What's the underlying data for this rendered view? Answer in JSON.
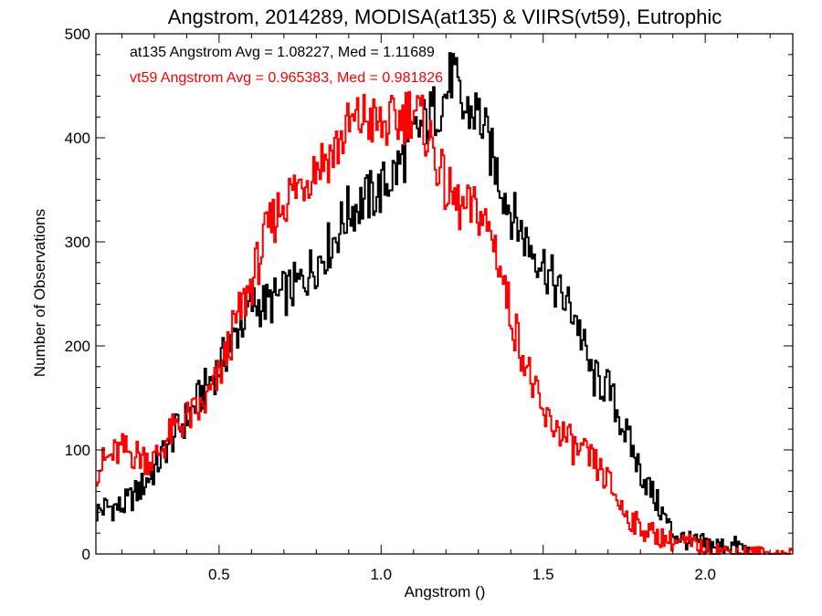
{
  "chart_data": {
    "type": "line",
    "title": "Angstrom, 2014289, MODISA(at135) & VIIRS(vt59), Eutrophic",
    "xlabel": "Angstrom ()",
    "ylabel": "Number of Observations",
    "xlim": [
      0.12,
      2.27
    ],
    "ylim": [
      0,
      500
    ],
    "xticks": [
      0.5,
      1.0,
      1.5,
      2.0
    ],
    "xtick_labels": [
      "0.5",
      "1.0",
      "1.5",
      "2.0"
    ],
    "yticks": [
      0,
      100,
      200,
      300,
      400,
      500
    ],
    "ytick_labels": [
      "0",
      "100",
      "200",
      "300",
      "400",
      "500"
    ],
    "step_style": "histogram",
    "bin_width": 0.005,
    "series": [
      {
        "name": "at135",
        "color": "#000000",
        "x": [
          0.12,
          0.15,
          0.2,
          0.25,
          0.3,
          0.35,
          0.4,
          0.45,
          0.5,
          0.55,
          0.6,
          0.65,
          0.7,
          0.75,
          0.8,
          0.85,
          0.9,
          0.95,
          1.0,
          1.05,
          1.1,
          1.15,
          1.2,
          1.22,
          1.25,
          1.3,
          1.35,
          1.4,
          1.45,
          1.5,
          1.55,
          1.6,
          1.65,
          1.7,
          1.75,
          1.8,
          1.85,
          1.9,
          1.95,
          2.0,
          2.05,
          2.1,
          2.15
        ],
        "y": [
          40,
          45,
          45,
          60,
          80,
          110,
          130,
          155,
          180,
          210,
          240,
          240,
          250,
          260,
          280,
          300,
          330,
          340,
          350,
          370,
          400,
          420,
          440,
          465,
          425,
          425,
          375,
          330,
          300,
          280,
          250,
          230,
          170,
          160,
          120,
          80,
          50,
          20,
          12,
          10,
          8,
          8,
          0
        ]
      },
      {
        "name": "vt59",
        "color": "#ff0000",
        "x": [
          0.12,
          0.15,
          0.2,
          0.25,
          0.3,
          0.35,
          0.4,
          0.45,
          0.5,
          0.55,
          0.6,
          0.65,
          0.7,
          0.75,
          0.8,
          0.85,
          0.9,
          0.95,
          1.0,
          1.05,
          1.1,
          1.15,
          1.2,
          1.25,
          1.3,
          1.35,
          1.4,
          1.45,
          1.5,
          1.55,
          1.6,
          1.65,
          1.7,
          1.75,
          1.8,
          1.85,
          1.9,
          1.95,
          2.0,
          2.05,
          2.1,
          2.15,
          2.2,
          2.27
        ],
        "y": [
          80,
          90,
          100,
          95,
          90,
          115,
          130,
          140,
          170,
          220,
          260,
          310,
          340,
          355,
          375,
          385,
          410,
          420,
          410,
          415,
          430,
          400,
          350,
          330,
          330,
          300,
          230,
          180,
          130,
          120,
          100,
          90,
          70,
          40,
          25,
          18,
          12,
          10,
          5,
          3,
          2,
          1,
          0,
          0
        ]
      }
    ],
    "annotations": [
      {
        "text": "at135 Angstrom Avg = 1.08227, Med = 1.11689",
        "color": "#000000"
      },
      {
        "text": "vt59 Angstrom Avg = 0.965383, Med = 0.981826",
        "color": "#ff0000"
      }
    ]
  }
}
